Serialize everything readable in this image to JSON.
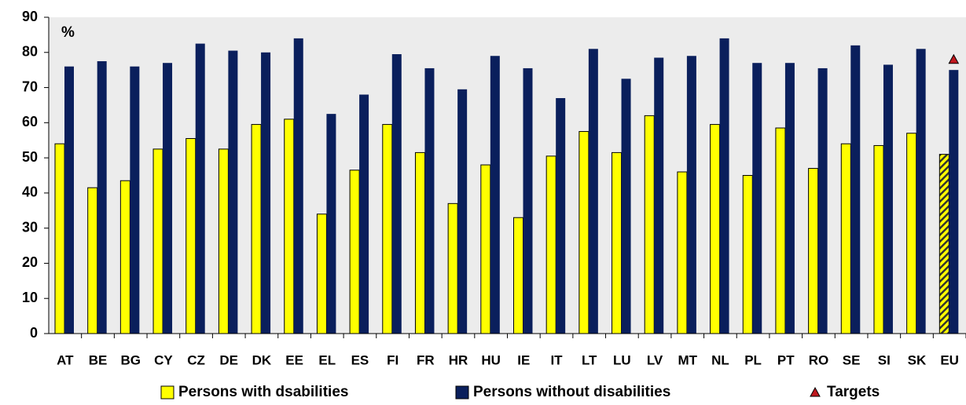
{
  "chart_data": {
    "type": "bar",
    "annotation": "%",
    "categories": [
      "AT",
      "BE",
      "BG",
      "CY",
      "CZ",
      "DE",
      "DK",
      "EE",
      "EL",
      "ES",
      "FI",
      "FR",
      "HR",
      "HU",
      "IE",
      "IT",
      "LT",
      "LU",
      "LV",
      "MT",
      "NL",
      "PL",
      "PT",
      "RO",
      "SE",
      "SI",
      "SK",
      "EU"
    ],
    "series": [
      {
        "name": "Persons with dsabilities",
        "color": "#ffff00",
        "values": [
          54,
          41.5,
          43.5,
          52.5,
          55.5,
          52.5,
          59.5,
          61,
          34,
          46.5,
          59.5,
          51.5,
          37,
          48,
          33,
          50.5,
          57.5,
          51.5,
          62,
          46,
          59.5,
          45,
          58.5,
          47,
          54,
          53.5,
          57,
          51
        ]
      },
      {
        "name": "Persons without disabilities",
        "color": "#0a1f5c",
        "values": [
          76,
          77.5,
          76,
          77,
          82.5,
          80.5,
          80,
          84,
          62.5,
          68,
          79.5,
          75.5,
          69.5,
          79,
          75.5,
          67,
          81,
          72.5,
          78.5,
          79,
          84,
          77,
          77,
          75.5,
          82,
          76.5,
          81,
          75
        ]
      },
      {
        "name": "Targets",
        "color": "#c0181e",
        "marker": "triangle",
        "values": [
          null,
          null,
          null,
          null,
          null,
          null,
          null,
          null,
          null,
          null,
          null,
          null,
          null,
          null,
          null,
          null,
          null,
          null,
          null,
          null,
          null,
          null,
          null,
          null,
          null,
          null,
          null,
          78
        ]
      }
    ],
    "hatch_last": true,
    "ylim": [
      0,
      90
    ],
    "yticks": [
      0,
      10,
      20,
      30,
      40,
      50,
      60,
      70,
      80,
      90
    ],
    "grid": false
  }
}
